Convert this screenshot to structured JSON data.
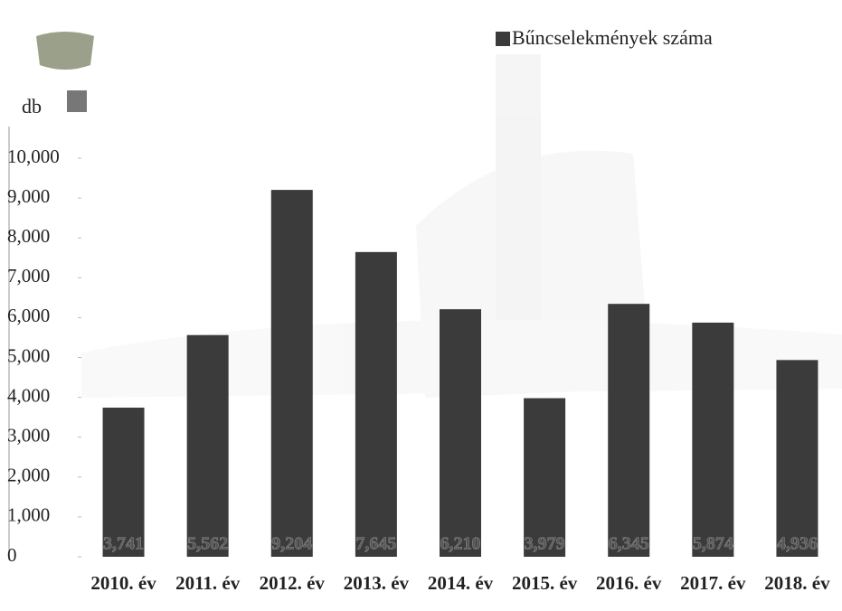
{
  "chart_data": {
    "type": "bar",
    "y_label": "db",
    "categories": [
      "2010. év",
      "2011. év",
      "2012. év",
      "2013. év",
      "2014. év",
      "2015. év",
      "2016. év",
      "2017. év",
      "2018. év"
    ],
    "series": [
      {
        "name": "Bűncselekmények száma",
        "color": "#3b3b3b",
        "values": [
          3741,
          5562,
          9204,
          7645,
          6210,
          3979,
          6345,
          5874,
          4936
        ],
        "value_labels": [
          "3,741",
          "5,562",
          "9,204",
          "7,645",
          "6,210",
          "3,979",
          "6,345",
          "5,874",
          "4,936"
        ]
      }
    ],
    "ylim": [
      0,
      10000
    ],
    "yticks": [
      0,
      {
        "value": 1000,
        "label": "1,000"
      },
      {
        "value": 2000,
        "label": "2,000"
      },
      {
        "value": 3000,
        "label": "3,000"
      },
      {
        "value": 4000,
        "label": "4,000"
      },
      {
        "value": 5000,
        "label": "5,000"
      },
      {
        "value": 6000,
        "label": "6,000"
      },
      {
        "value": 7000,
        "label": "7,000"
      },
      {
        "value": 8000,
        "label": "8,000"
      },
      {
        "value": 9000,
        "label": "9,000"
      },
      {
        "value": 10000,
        "label": "10,000"
      }
    ],
    "legend": "top-right",
    "grid": false
  }
}
